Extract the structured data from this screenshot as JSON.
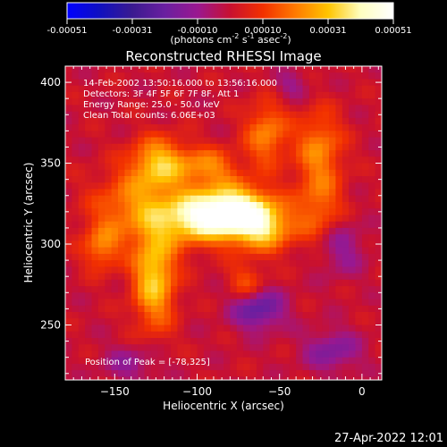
{
  "colorbar": {
    "ticks": [
      "-0.00051",
      "-0.00031",
      "-0.00010",
      "0.00010",
      "0.00031",
      "0.00051"
    ],
    "units_main": "(photons cm",
    "units_exp1": "-2",
    "units_mid": " s",
    "units_exp2": "-1",
    "units_asec": " asec",
    "units_exp3": "-2",
    "units_close": ")",
    "colors": [
      "#0000ff",
      "#1010c0",
      "#3a1a90",
      "#6a1fa0",
      "#9a1890",
      "#c81030",
      "#f23000",
      "#ff7a00",
      "#ffc400",
      "#ffffc0",
      "#ffffff"
    ]
  },
  "chart_data": {
    "type": "heatmap",
    "title": "Reconstructed RHESSI Image",
    "xlabel": "Heliocentric X (arcsec)",
    "ylabel": "Heliocentric Y (arcsec)",
    "xlim": [
      -180,
      12
    ],
    "ylim": [
      216,
      410
    ],
    "x_ticks": [
      -150,
      -100,
      -50,
      0
    ],
    "y_ticks": [
      250,
      300,
      350,
      400
    ],
    "value_range": [
      -0.00051,
      0.00051
    ],
    "peak_position": [
      -78,
      325
    ],
    "info_lines": [
      "14-Feb-2002 13:50:16.000 to 13:56:16.000",
      "Detectors: 3F 4F 5F 6F 7F 8F, Att 1",
      "Energy Range: 25.0 - 50.0 keV",
      "Clean    Total counts: 6.06E+03"
    ],
    "peak_label": "Position of Peak = [-78,325]",
    "sources": [
      {
        "x": -80,
        "y": 322,
        "sx": 16,
        "sy": 11,
        "amp": 1.0
      },
      {
        "x": -105,
        "y": 318,
        "sx": 14,
        "sy": 11,
        "amp": 0.62
      },
      {
        "x": -62,
        "y": 312,
        "sx": 13,
        "sy": 10,
        "amp": 0.55
      },
      {
        "x": -128,
        "y": 282,
        "sx": 9,
        "sy": 22,
        "amp": 0.65
      },
      {
        "x": -140,
        "y": 325,
        "sx": 18,
        "sy": 15,
        "amp": 0.42
      },
      {
        "x": -125,
        "y": 352,
        "sx": 12,
        "sy": 11,
        "amp": 0.58
      },
      {
        "x": -60,
        "y": 370,
        "sx": 9,
        "sy": 14,
        "amp": 0.42
      },
      {
        "x": -28,
        "y": 362,
        "sx": 10,
        "sy": 16,
        "amp": 0.4
      },
      {
        "x": -28,
        "y": 325,
        "sx": 10,
        "sy": 16,
        "amp": 0.34
      },
      {
        "x": -160,
        "y": 300,
        "sx": 8,
        "sy": 10,
        "amp": 0.38
      },
      {
        "x": -95,
        "y": 350,
        "sx": 12,
        "sy": 8,
        "amp": 0.4
      },
      {
        "x": -72,
        "y": 278,
        "sx": 8,
        "sy": 8,
        "amp": 0.3
      },
      {
        "x": -15,
        "y": 300,
        "sx": 10,
        "sy": 12,
        "amp": -0.25
      },
      {
        "x": -65,
        "y": 262,
        "sx": 11,
        "sy": 9,
        "amp": -0.45
      },
      {
        "x": -20,
        "y": 236,
        "sx": 12,
        "sy": 9,
        "amp": -0.3
      },
      {
        "x": -142,
        "y": 228,
        "sx": 12,
        "sy": 8,
        "amp": -0.22
      },
      {
        "x": -45,
        "y": 400,
        "sx": 8,
        "sy": 6,
        "amp": -0.2
      }
    ]
  },
  "footer": {
    "datetime": "27-Apr-2022 12:01"
  }
}
